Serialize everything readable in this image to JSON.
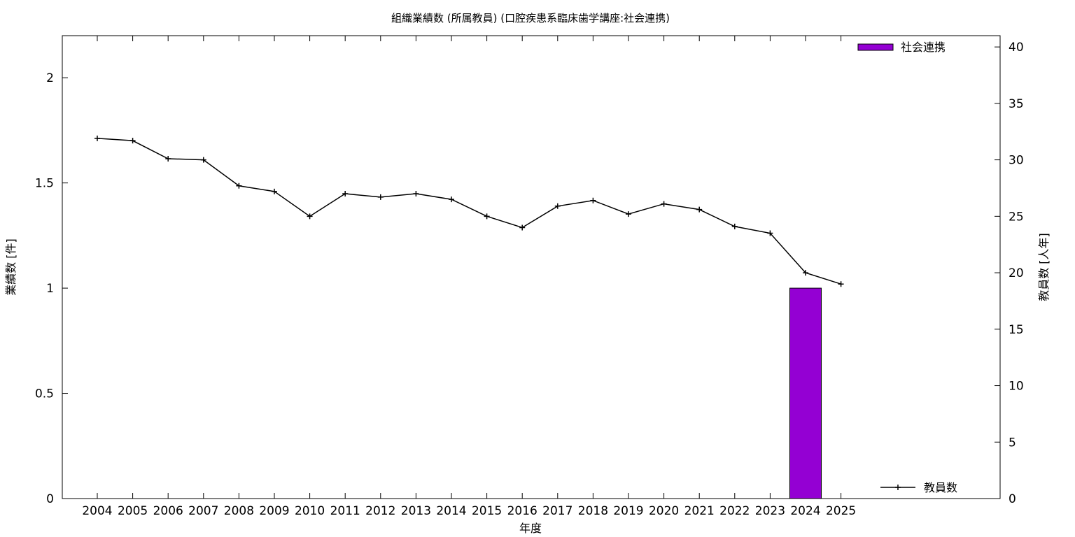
{
  "chart_data": {
    "type": "bar",
    "title": "組織業績数 (所属教員) (口腔疾患系臨床歯学講座:社会連携)",
    "xlabel": "年度",
    "ylabel": "業績数 [件]",
    "y2label": "教員数 [人年]",
    "categories": [
      "2004",
      "2005",
      "2006",
      "2007",
      "2008",
      "2009",
      "2010",
      "2011",
      "2012",
      "2013",
      "2014",
      "2015",
      "2016",
      "2017",
      "2018",
      "2019",
      "2020",
      "2021",
      "2022",
      "2023",
      "2024",
      "2025"
    ],
    "ylim": [
      0,
      2.2
    ],
    "yticks": [
      "0",
      "0.5",
      "1",
      "1.5",
      "2"
    ],
    "y2lim": [
      0,
      41
    ],
    "y2ticks": [
      "0",
      "5",
      "10",
      "15",
      "20",
      "25",
      "30",
      "35",
      "40"
    ],
    "series": [
      {
        "name": "社会連携",
        "kind": "bar",
        "axis": "left",
        "color": "#9400d3",
        "values": [
          0,
          0,
          0,
          0,
          0,
          0,
          0,
          0,
          0,
          0,
          0,
          0,
          0,
          0,
          0,
          0,
          0,
          0,
          0,
          0,
          1,
          0
        ]
      },
      {
        "name": "教員数",
        "kind": "line",
        "axis": "right",
        "color": "#000000",
        "values": [
          31.9,
          31.7,
          30.1,
          30.0,
          27.7,
          27.2,
          25.0,
          27.0,
          26.7,
          27.0,
          26.5,
          25.0,
          24.0,
          25.9,
          26.4,
          25.2,
          26.1,
          25.6,
          24.1,
          23.5,
          20.0,
          19.0
        ]
      }
    ],
    "grid": false,
    "legend_bar_position": "top-right",
    "legend_line_position": "bottom-right"
  }
}
